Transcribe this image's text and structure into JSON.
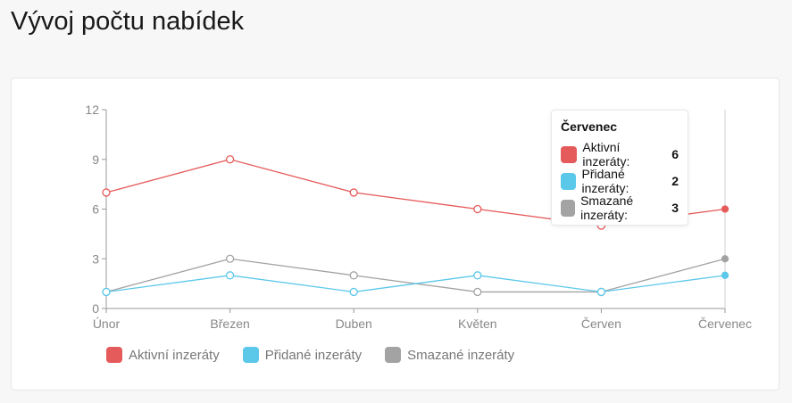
{
  "page": {
    "title": "Vývoj počtu nabídek"
  },
  "chart_data": {
    "type": "line",
    "categories": [
      "Únor",
      "Březen",
      "Duben",
      "Květen",
      "Červen",
      "Červenec"
    ],
    "series": [
      {
        "name": "Aktivní inzeráty",
        "values": [
          7,
          9,
          7,
          6,
          5,
          6
        ],
        "color": "#e55a5a"
      },
      {
        "name": "Přidané inzeráty",
        "values": [
          1,
          2,
          1,
          2,
          1,
          2
        ],
        "color": "#5bc8ea"
      },
      {
        "name": "Smazané inzeráty",
        "values": [
          1,
          3,
          2,
          1,
          1,
          3
        ],
        "color": "#a3a3a3"
      }
    ],
    "ylim": [
      0,
      12
    ],
    "yticks": [
      "0",
      "3",
      "6",
      "9",
      "12"
    ],
    "legend_position": "bottom-left",
    "grid": false
  },
  "tooltip": {
    "title": "Červenec",
    "rows": [
      {
        "label": "Aktivní inzeráty:",
        "value": "6",
        "color": "#e55a5a"
      },
      {
        "label": "Přidané inzeráty:",
        "value": "2",
        "color": "#5bc8ea"
      },
      {
        "label": "Smazané inzeráty:",
        "value": "3",
        "color": "#a3a3a3"
      }
    ]
  }
}
